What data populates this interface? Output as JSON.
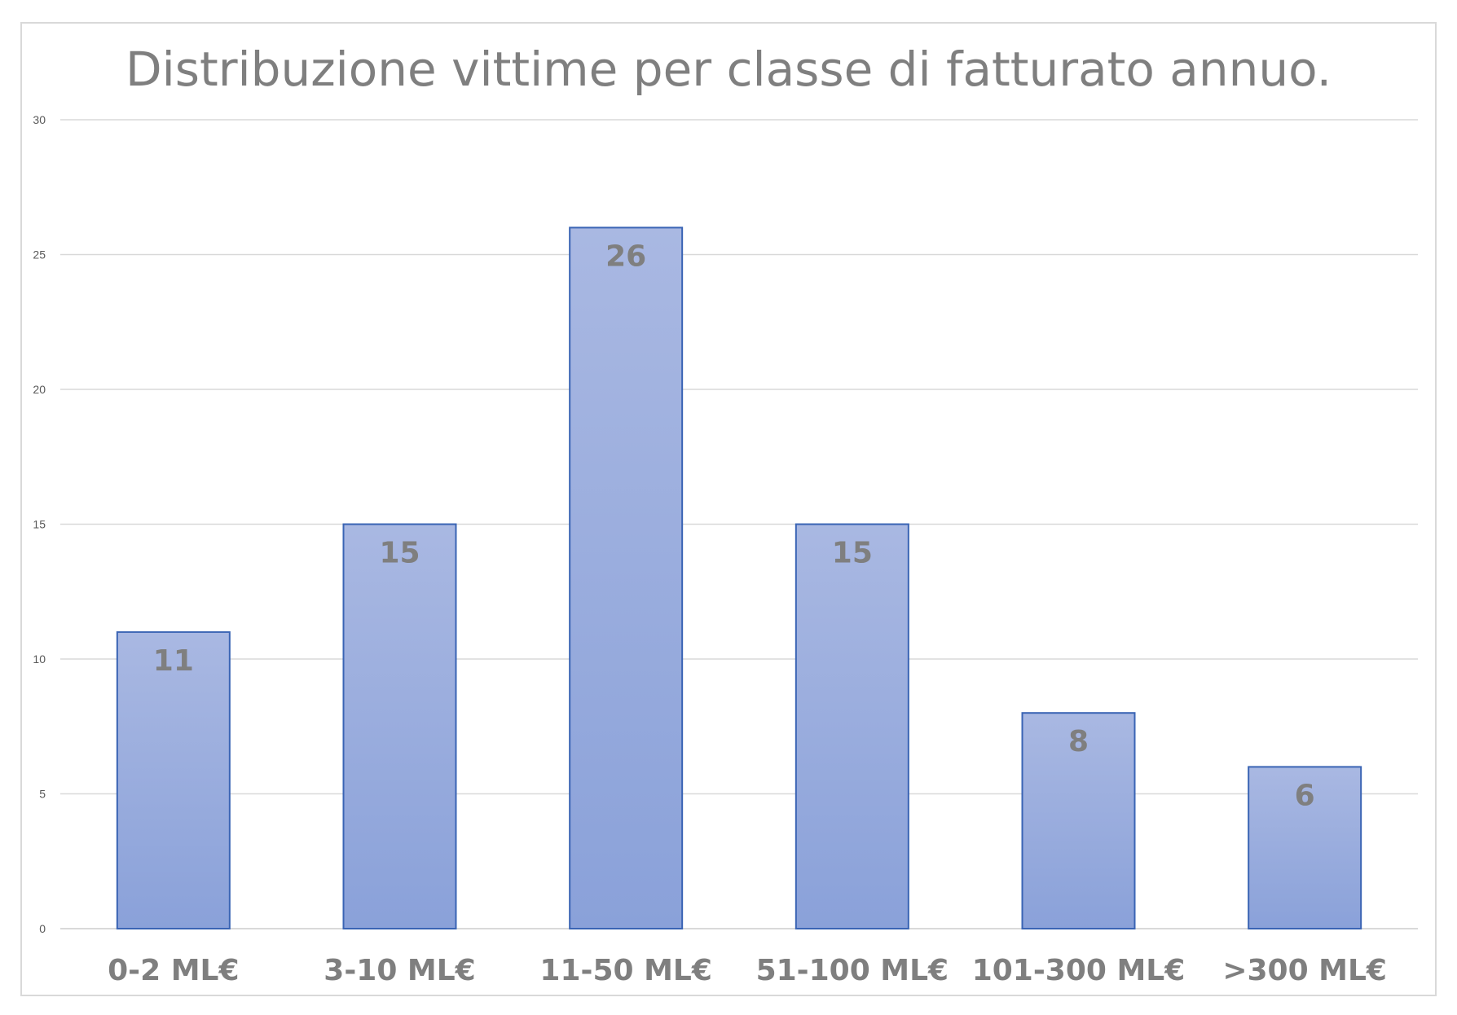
{
  "chart_data": {
    "type": "bar",
    "title": "Distribuzione vittime per classe di fatturato annuo.",
    "categories": [
      "0-2 ML€",
      "3-10 ML€",
      "11-50 ML€",
      "51-100 ML€",
      "101-300 ML€",
      ">300 ML€"
    ],
    "values": [
      11,
      15,
      26,
      15,
      8,
      6
    ],
    "ylim": [
      0,
      30
    ],
    "yticks": [
      0,
      5,
      10,
      15,
      20,
      25,
      30
    ],
    "grid": true,
    "legend": "none",
    "data_labels": "inside-end",
    "colors": {
      "bar_fill_top": "#a9b8e2",
      "bar_fill_bottom": "#8aa1d9",
      "bar_border": "#3a64b4",
      "text": "#7f7f7f",
      "grid": "#d9d9d9"
    }
  }
}
